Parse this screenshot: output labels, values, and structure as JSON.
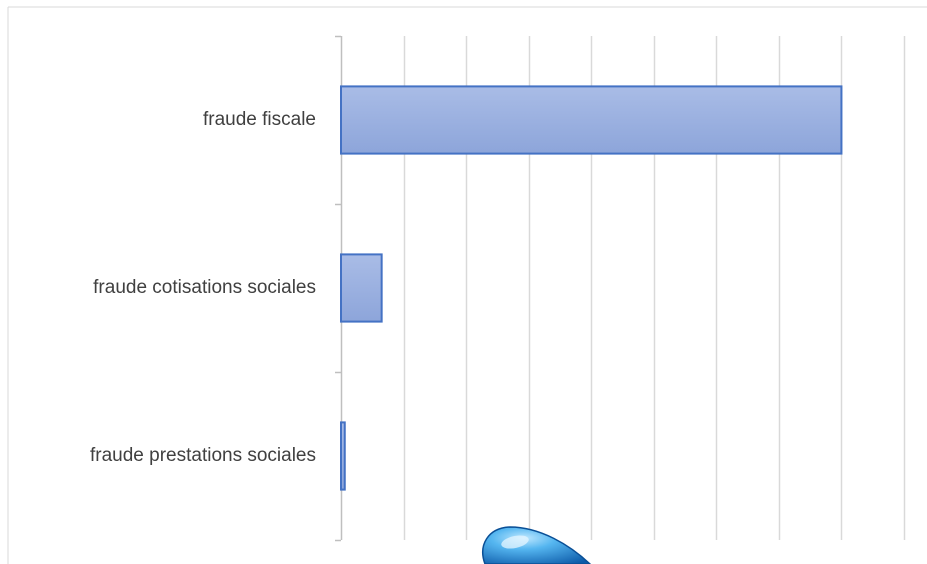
{
  "chart_data": {
    "type": "bar",
    "orientation": "horizontal",
    "categories": [
      "fraude fiscale",
      "fraude cotisations sociales",
      "fraude prestations sociales"
    ],
    "values": [
      80,
      6.5,
      0.6
    ],
    "title": "",
    "xlabel": "",
    "ylabel": "",
    "xlim": [
      0,
      90
    ],
    "major_gridline_step": 10,
    "grid": true,
    "legend": "none",
    "x_tick_labels_visible": false,
    "colors": {
      "bar_fill_light": "#b4c4e8",
      "bar_fill_dark": "#8ea6db",
      "bar_stroke": "#4472c4",
      "grid": "#d9d9d9",
      "axis": "#bfbfbf",
      "label_text": "#404040",
      "frame": "#d9d9d9"
    }
  },
  "decor": {
    "overlay_shape": "blue-droplet-icon",
    "overlay_color": "#2a8fd8"
  }
}
